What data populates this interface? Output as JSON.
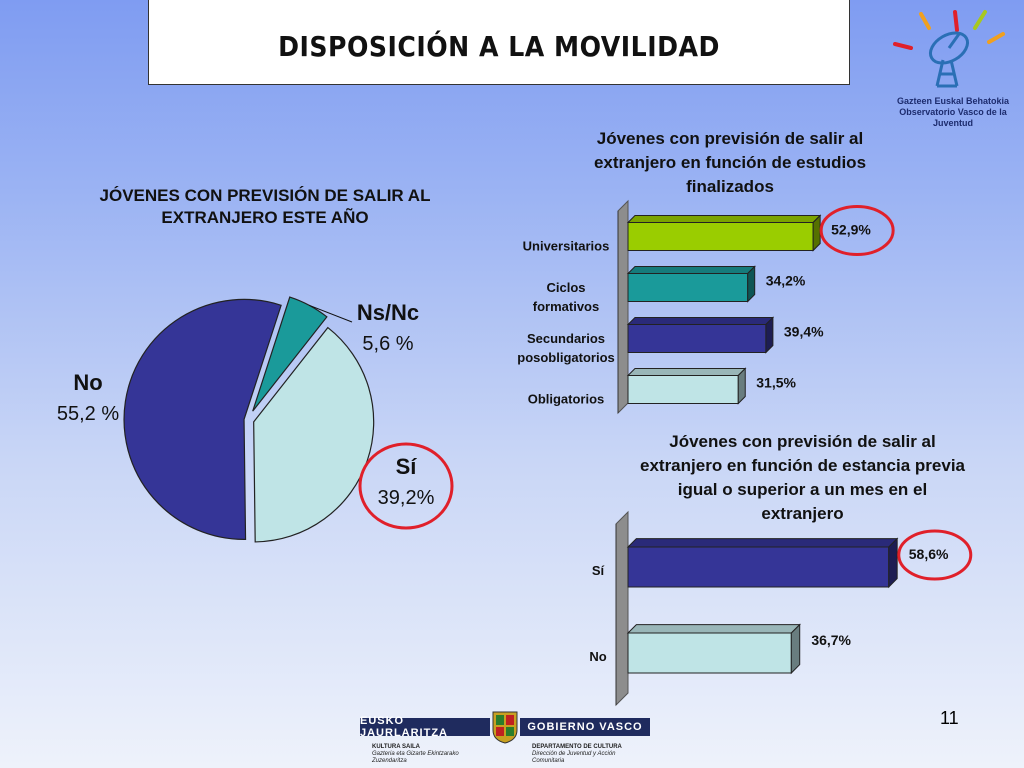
{
  "header": {
    "title": "DISPOSICIÓN A LA MOVILIDAD"
  },
  "logo": {
    "line1": "Gazteen Euskal Behatokia",
    "line2": "Observatorio Vasco de la Juventud"
  },
  "page_number": "11",
  "footer": {
    "left_bar": "EUSKO JAURLARITZA",
    "right_bar": "GOBIERNO VASCO",
    "left_dept": "KULTURA SAILA",
    "left_sub1": "Gazteria eta Gizarte Ekintzarako",
    "left_sub2": "Zuzendaritza",
    "right_dept": "DEPARTAMENTO DE CULTURA",
    "right_sub1": "Dirección de Juventud y Acción",
    "right_sub2": "Comunitaria"
  },
  "colors": {
    "navy": "#353597",
    "lightblue": "#bfe4e6",
    "teal": "#1a9a9a",
    "green": "#9acd00",
    "highlight": "#e0202a"
  },
  "chart_data": [
    {
      "type": "pie",
      "title": "JÓVENES CON PREVISIÓN DE SALIR AL EXTRANJERO ESTE AÑO",
      "slices": [
        {
          "label": "Ns/Nc",
          "value": 5.6,
          "value_label": "5,6 %",
          "color": "#1a9a9a"
        },
        {
          "label": "Sí",
          "value": 39.2,
          "value_label": "39,2%",
          "color": "#bfe4e6",
          "highlighted": true
        },
        {
          "label": "No",
          "value": 55.2,
          "value_label": "55,2 %",
          "color": "#353597"
        }
      ]
    },
    {
      "type": "bar",
      "orientation": "horizontal",
      "title": "Jóvenes con previsión de salir al extranjero en función de estudios finalizados",
      "categories": [
        "Universitarios",
        "Ciclos formativos",
        "Secundarios posobligatorios",
        "Obligatorios"
      ],
      "category_lines": [
        [
          "Universitarios"
        ],
        [
          "Ciclos",
          "formativos"
        ],
        [
          "Secundarios",
          "posobligatorios"
        ],
        [
          "Obligatorios"
        ]
      ],
      "values": [
        52.9,
        34.2,
        39.4,
        31.5
      ],
      "value_labels": [
        "52,9%",
        "34,2%",
        "39,4%",
        "31,5%"
      ],
      "colors": [
        "#9acd00",
        "#1a9a9a",
        "#353597",
        "#bfe4e6"
      ],
      "highlighted_index": 0,
      "xlim": [
        0,
        60
      ]
    },
    {
      "type": "bar",
      "orientation": "horizontal",
      "title": "Jóvenes con previsión de salir al extranjero en función de estancia previa igual o superior a un mes en el extranjero",
      "categories": [
        "Sí",
        "No"
      ],
      "values": [
        58.6,
        36.7
      ],
      "value_labels": [
        "58,6%",
        "36,7%"
      ],
      "colors": [
        "#353597",
        "#bfe4e6"
      ],
      "highlighted_index": 0,
      "xlim": [
        0,
        60
      ]
    }
  ]
}
